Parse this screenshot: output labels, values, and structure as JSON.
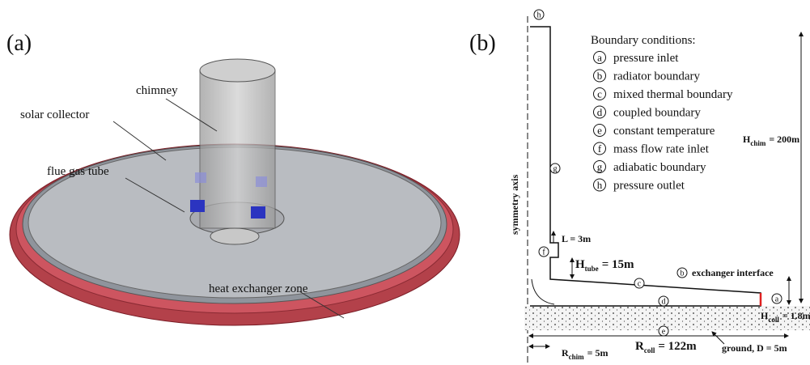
{
  "panel_a": {
    "label": "(a)",
    "callouts": {
      "chimney": "chimney",
      "collector": "solar collector",
      "tube": "flue gas tube",
      "exchanger": "heat exchanger zone"
    }
  },
  "panel_b": {
    "label": "(b)",
    "legend_title": "Boundary conditions:",
    "legend": [
      {
        "key": "a",
        "text": "pressure inlet"
      },
      {
        "key": "b",
        "text": "radiator boundary"
      },
      {
        "key": "c",
        "text": "mixed thermal boundary"
      },
      {
        "key": "d",
        "text": "coupled boundary"
      },
      {
        "key": "e",
        "text": "constant temperature"
      },
      {
        "key": "f",
        "text": "mass flow rate inlet"
      },
      {
        "key": "g",
        "text": "adiabatic boundary"
      },
      {
        "key": "h",
        "text": "pressure outlet"
      }
    ],
    "axis_label": "symmetry axis",
    "markers": {
      "top": "h",
      "wall": "g",
      "inlet": "f",
      "roof": "c",
      "floor": "d",
      "outlet": "a",
      "ground": "e",
      "interface": "b"
    },
    "interface_label": "exchanger interface",
    "dimensions": {
      "chimney_height": {
        "symbol": "H",
        "subscript": "chim",
        "value": "= 200m"
      },
      "inlet_length": "L = 3m",
      "tube_height": {
        "symbol": "H",
        "subscript": "tube",
        "value": "= 15m"
      },
      "collector_height": {
        "symbol": "H",
        "subscript": "coll",
        "value": "= 1.8m"
      },
      "chimney_radius": {
        "symbol": "R",
        "subscript": "chim",
        "value": "= 5m"
      },
      "collector_radius": {
        "symbol": "R",
        "subscript": "coll",
        "value": "= 122m"
      },
      "ground_depth": "ground, D = 5m"
    }
  }
}
